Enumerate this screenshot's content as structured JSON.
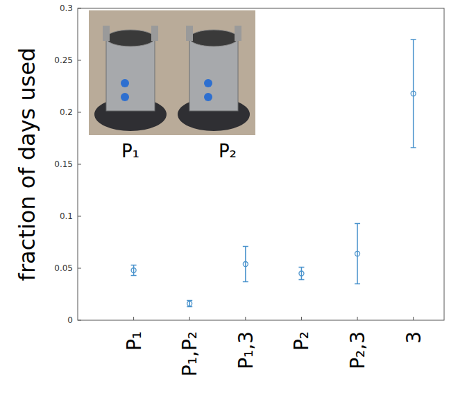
{
  "chart_data": {
    "type": "scatter",
    "y_label": "fraction of days used",
    "categories": [
      "P₁",
      "P₁,P₂",
      "P₁,3",
      "P₂",
      "P₂,3",
      "3"
    ],
    "values": [
      0.048,
      0.016,
      0.054,
      0.045,
      0.064,
      0.218
    ],
    "errors": [
      0.005,
      0.003,
      0.017,
      0.006,
      0.029,
      0.052
    ],
    "color": "#4a93cc",
    "marker": "circle",
    "ylim": [
      0,
      0.3
    ],
    "yticks": [
      0,
      0.05,
      0.1,
      0.15,
      0.2,
      0.25,
      0.3
    ],
    "grid": false,
    "image_labels": [
      "P₁",
      "P₂"
    ]
  }
}
